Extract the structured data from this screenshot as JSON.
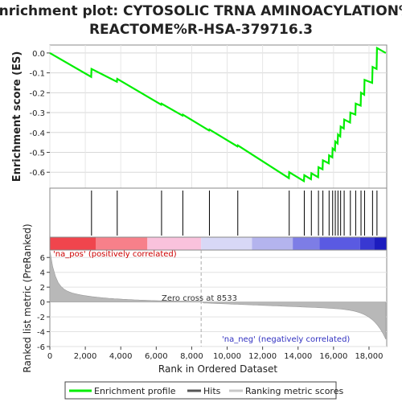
{
  "chart_data": {
    "type": "line",
    "title_line1": "Enrichment plot: CYTOSOLIC TRNA AMINOACYLATION%",
    "title_line2": "REACTOME%R-HSA-379716.3",
    "ylabel_es": "Enrichment score (ES)",
    "ylabel_metric": "Ranked list metric (PreRanked)",
    "xlabel": "Rank in Ordered Dataset",
    "xlim": [
      0,
      19000
    ],
    "es_ylim": [
      -0.68,
      0.04
    ],
    "metric_ylim": [
      -6,
      7
    ],
    "x_ticks": [
      {
        "v": 0,
        "label": "0"
      },
      {
        "v": 2000,
        "label": "2,000"
      },
      {
        "v": 4000,
        "label": "4,000"
      },
      {
        "v": 6000,
        "label": "6,000"
      },
      {
        "v": 8000,
        "label": "8,000"
      },
      {
        "v": 10000,
        "label": "10,000"
      },
      {
        "v": 12000,
        "label": "12,000"
      },
      {
        "v": 14000,
        "label": "14,000"
      },
      {
        "v": 16000,
        "label": "16,000"
      },
      {
        "v": 18000,
        "label": "18,000"
      }
    ],
    "es_ticks": [
      {
        "v": 0.0,
        "label": "0.0"
      },
      {
        "v": -0.1,
        "label": "-0.1"
      },
      {
        "v": -0.2,
        "label": "-0.2"
      },
      {
        "v": -0.3,
        "label": "-0.3"
      },
      {
        "v": -0.4,
        "label": "-0.4"
      },
      {
        "v": -0.5,
        "label": "-0.5"
      },
      {
        "v": -0.6,
        "label": "-0.6"
      }
    ],
    "metric_ticks": [
      {
        "v": 6,
        "label": "6"
      },
      {
        "v": 4,
        "label": "4"
      },
      {
        "v": 2,
        "label": "2"
      },
      {
        "v": 0,
        "label": "0"
      },
      {
        "v": -2,
        "label": "-2"
      },
      {
        "v": -4,
        "label": "-4"
      },
      {
        "v": -6,
        "label": "-6"
      }
    ],
    "hits": [
      2350,
      3800,
      6300,
      7500,
      9000,
      10600,
      13500,
      14350,
      14750,
      15150,
      15400,
      15750,
      15950,
      16100,
      16250,
      16400,
      16600,
      16950,
      17250,
      17550,
      17750,
      18200,
      18450
    ],
    "es_profile": [
      {
        "x": 0,
        "y": 0.0
      },
      {
        "x": 2330,
        "y": -0.12
      },
      {
        "x": 2350,
        "y": -0.08
      },
      {
        "x": 3780,
        "y": -0.145
      },
      {
        "x": 3800,
        "y": -0.13
      },
      {
        "x": 6280,
        "y": -0.26
      },
      {
        "x": 6300,
        "y": -0.255
      },
      {
        "x": 7480,
        "y": -0.315
      },
      {
        "x": 7500,
        "y": -0.31
      },
      {
        "x": 8980,
        "y": -0.39
      },
      {
        "x": 9000,
        "y": -0.385
      },
      {
        "x": 10580,
        "y": -0.47
      },
      {
        "x": 10600,
        "y": -0.465
      },
      {
        "x": 13480,
        "y": -0.63
      },
      {
        "x": 13500,
        "y": -0.6
      },
      {
        "x": 14330,
        "y": -0.645
      },
      {
        "x": 14350,
        "y": -0.615
      },
      {
        "x": 14730,
        "y": -0.635
      },
      {
        "x": 14750,
        "y": -0.605
      },
      {
        "x": 15130,
        "y": -0.625
      },
      {
        "x": 15150,
        "y": -0.575
      },
      {
        "x": 15380,
        "y": -0.585
      },
      {
        "x": 15400,
        "y": -0.54
      },
      {
        "x": 15730,
        "y": -0.555
      },
      {
        "x": 15750,
        "y": -0.515
      },
      {
        "x": 15930,
        "y": -0.525
      },
      {
        "x": 15950,
        "y": -0.48
      },
      {
        "x": 16080,
        "y": -0.49
      },
      {
        "x": 16100,
        "y": -0.445
      },
      {
        "x": 16230,
        "y": -0.455
      },
      {
        "x": 16250,
        "y": -0.41
      },
      {
        "x": 16380,
        "y": -0.42
      },
      {
        "x": 16400,
        "y": -0.37
      },
      {
        "x": 16580,
        "y": -0.38
      },
      {
        "x": 16600,
        "y": -0.335
      },
      {
        "x": 16930,
        "y": -0.35
      },
      {
        "x": 16950,
        "y": -0.3
      },
      {
        "x": 17230,
        "y": -0.31
      },
      {
        "x": 17250,
        "y": -0.255
      },
      {
        "x": 17530,
        "y": -0.265
      },
      {
        "x": 17550,
        "y": -0.2
      },
      {
        "x": 17730,
        "y": -0.21
      },
      {
        "x": 17750,
        "y": -0.135
      },
      {
        "x": 18180,
        "y": -0.15
      },
      {
        "x": 18200,
        "y": -0.07
      },
      {
        "x": 18430,
        "y": -0.08
      },
      {
        "x": 18450,
        "y": 0.025
      },
      {
        "x": 18950,
        "y": 0.0
      }
    ],
    "heatmap_segments": [
      {
        "x0": 0,
        "x1": 2600,
        "color": "#f0454d"
      },
      {
        "x0": 2600,
        "x1": 5500,
        "color": "#f7808a"
      },
      {
        "x0": 5500,
        "x1": 8533,
        "color": "#f9c2dc"
      },
      {
        "x0": 8533,
        "x1": 11400,
        "color": "#d8d8f6"
      },
      {
        "x0": 11400,
        "x1": 13700,
        "color": "#b4b4ee"
      },
      {
        "x0": 13700,
        "x1": 15200,
        "color": "#7d7de6"
      },
      {
        "x0": 15200,
        "x1": 17500,
        "color": "#5a5ae2"
      },
      {
        "x0": 17500,
        "x1": 18300,
        "color": "#3838d2"
      },
      {
        "x0": 18300,
        "x1": 19000,
        "color": "#1c1cbf"
      }
    ],
    "zero_cross": 8533,
    "zero_cross_label": "Zero cross at 8533",
    "na_pos_label": "'na_pos' (positively correlated)",
    "na_neg_label": "'na_neg' (negatively correlated)",
    "legend": [
      {
        "label": "Enrichment profile",
        "color": "#00ee00"
      },
      {
        "label": "Hits",
        "color": "#555555"
      },
      {
        "label": "Ranking metric scores",
        "color": "#c8c8c8"
      }
    ],
    "colors": {
      "profile": "#00ee00",
      "hits": "#000000",
      "metric_fill": "#b8b8b8",
      "pos_label": "#cc0000",
      "neg_label": "#3030c0"
    }
  }
}
